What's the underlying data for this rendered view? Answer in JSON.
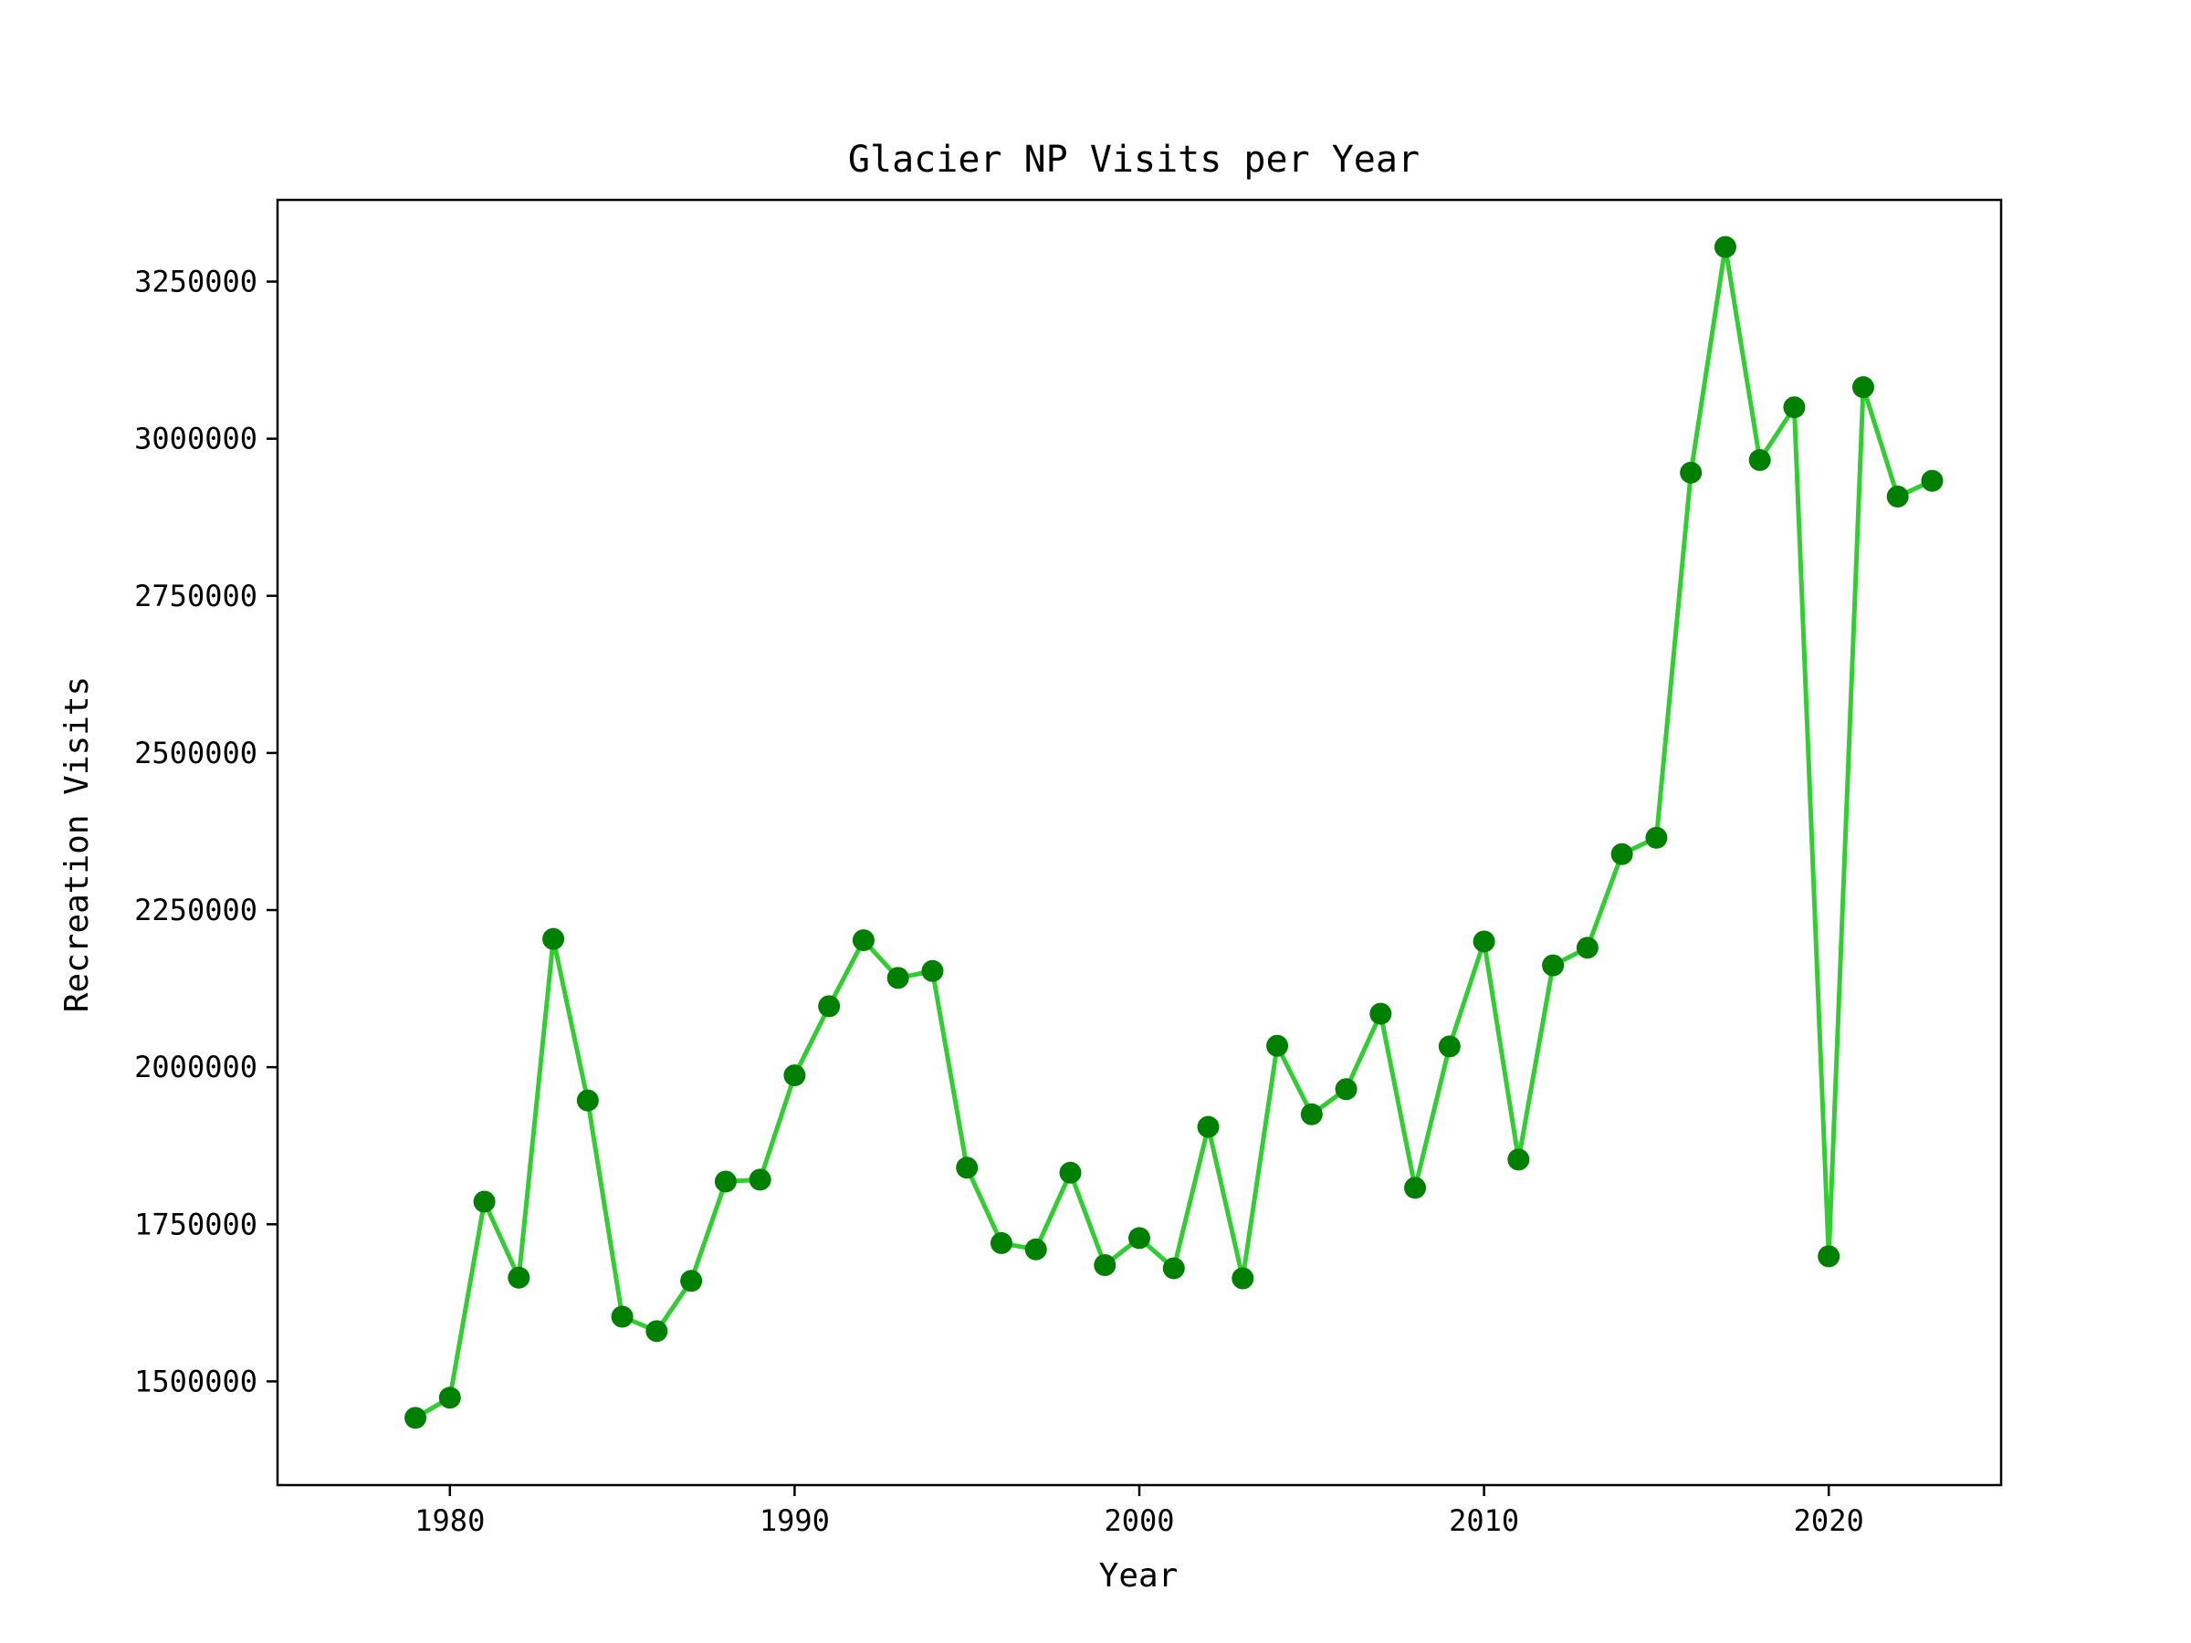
{
  "chart_data": {
    "type": "line",
    "title": "Glacier NP Visits per Year",
    "xlabel": "Year",
    "ylabel": "Recreation Visits",
    "xlim": [
      1975,
      2025
    ],
    "ylim": [
      1335000,
      3380000
    ],
    "grid": false,
    "xticks": [
      1980,
      1990,
      2000,
      2010,
      2020
    ],
    "xtick_labels": [
      "1980",
      "1990",
      "2000",
      "2010",
      "2020"
    ],
    "yticks": [
      1500000,
      1750000,
      2000000,
      2250000,
      2500000,
      2750000,
      3000000,
      3250000
    ],
    "ytick_labels": [
      "1500000",
      "1750000",
      "2000000",
      "2250000",
      "2500000",
      "2750000",
      "3000000",
      "3250000"
    ],
    "series": [
      {
        "line_color": "#32cd32",
        "marker_color": "#008000",
        "x": [
          1979,
          1980,
          1981,
          1982,
          1983,
          1984,
          1985,
          1986,
          1987,
          1988,
          1989,
          1990,
          1991,
          1992,
          1993,
          1994,
          1995,
          1996,
          1997,
          1998,
          1999,
          2000,
          2001,
          2002,
          2003,
          2004,
          2005,
          2006,
          2007,
          2008,
          2009,
          2010,
          2011,
          2012,
          2013,
          2014,
          2015,
          2016,
          2017,
          2018,
          2019,
          2020,
          2021,
          2022,
          2023
        ],
        "y": [
          1442000,
          1474000,
          1786000,
          1665000,
          2204000,
          1947000,
          1603000,
          1580000,
          1660000,
          1818000,
          1821000,
          1987000,
          2097000,
          2202000,
          2142000,
          2153000,
          1840000,
          1720000,
          1710000,
          1832000,
          1685000,
          1728000,
          1680000,
          1905000,
          1664000,
          2034000,
          1925000,
          1965000,
          2085000,
          1808000,
          2033000,
          2200000,
          1853000,
          2162000,
          2190000,
          2339000,
          2365000,
          2946000,
          3305000,
          2966000,
          3050000,
          1699000,
          3082000,
          2908000,
          2933000
        ]
      }
    ]
  }
}
